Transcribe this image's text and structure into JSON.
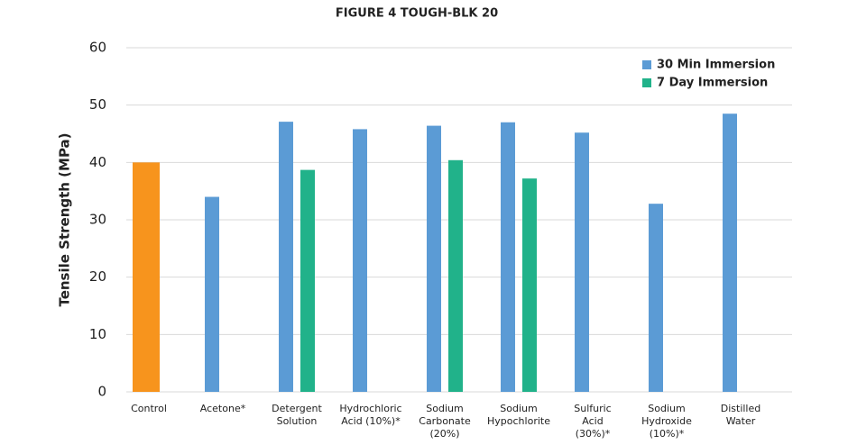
{
  "chart_data": {
    "type": "bar",
    "title": "FIGURE 4 TOUGH-BLK 20",
    "y_label": "Tensile Strength (MPa)",
    "categories": [
      "Control",
      "Acetone*",
      "Detergent\nSolution",
      "Hydrochloric\nAcid (10%)*",
      "Sodium\nCarbonate\n(20%)",
      "Sodium\nHypochlorite",
      "Sulfuric\nAcid\n(30%)*",
      "Sodium\nHydroxide\n(10%)*",
      "Distilled\nWater"
    ],
    "series": [
      {
        "color": "#f7941d",
        "values": [
          40,
          null,
          null,
          null,
          null,
          null,
          null,
          null,
          null
        ]
      },
      {
        "name": "30 Min Immersion",
        "color": "#5b9bd5",
        "values": [
          null,
          34,
          47.1,
          45.8,
          46.4,
          47,
          45.2,
          32.8,
          48.5
        ]
      },
      {
        "name": "7 Day Immersion",
        "color": "#21b28a",
        "values": [
          null,
          null,
          38.7,
          null,
          40.4,
          37.2,
          null,
          null,
          null
        ]
      }
    ],
    "ylim": [
      0,
      60
    ],
    "yticks": [
      0,
      10,
      20,
      30,
      40,
      50,
      60
    ],
    "grid": true,
    "legend": "top-right"
  }
}
